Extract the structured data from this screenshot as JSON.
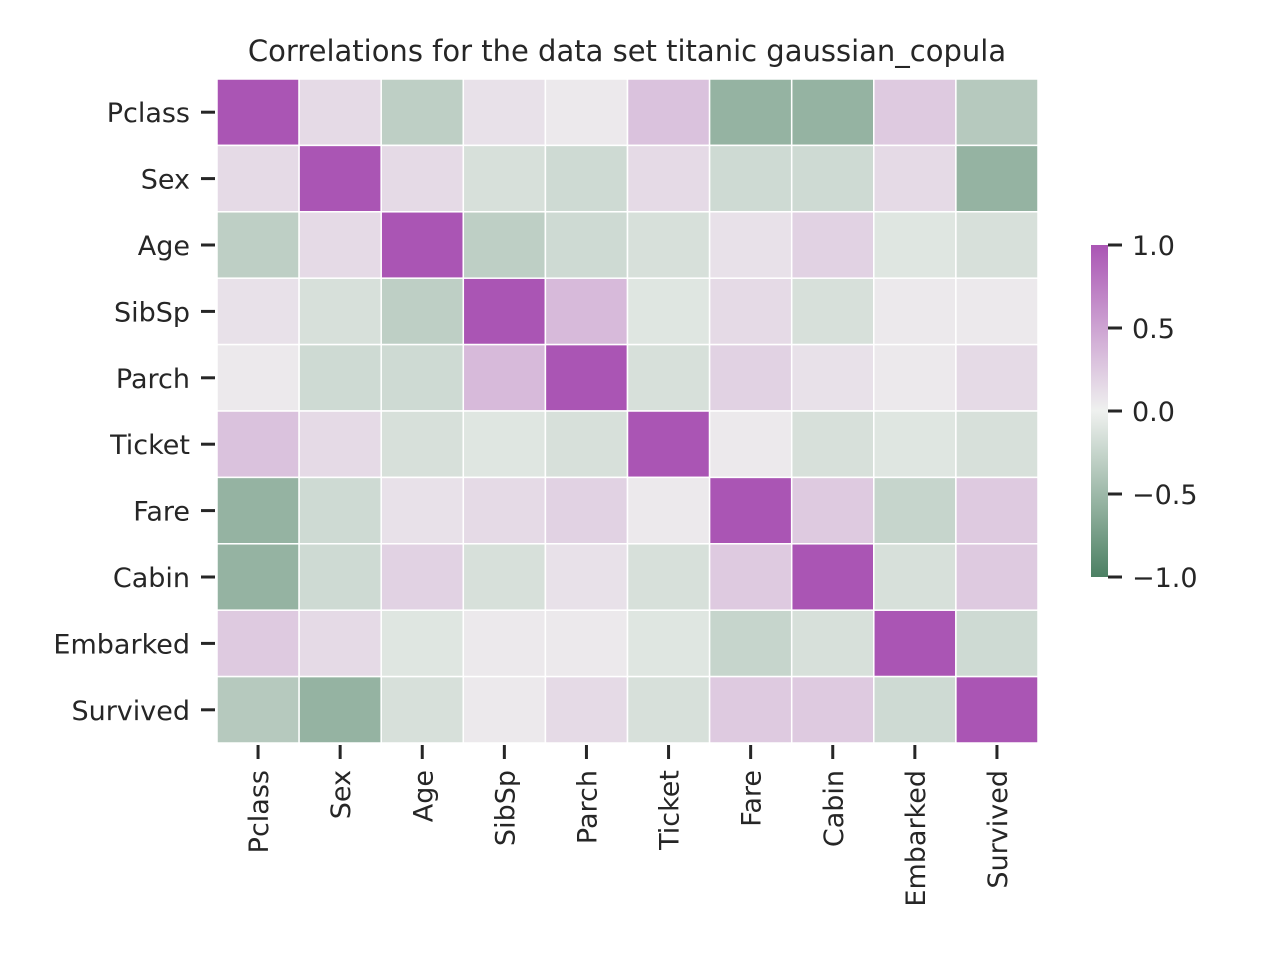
{
  "chart_data": {
    "type": "heatmap",
    "title": "Correlations for the data set titanic gaussian_copula",
    "xlabel": "",
    "ylabel": "",
    "row_labels": [
      "Pclass",
      "Sex",
      "Age",
      "SibSp",
      "Parch",
      "Ticket",
      "Fare",
      "Cabin",
      "Embarked",
      "Survived"
    ],
    "col_labels": [
      "Pclass",
      "Sex",
      "Age",
      "SibSp",
      "Parch",
      "Ticket",
      "Fare",
      "Cabin",
      "Embarked",
      "Survived"
    ],
    "values": [
      [
        1.0,
        0.15,
        -0.3,
        0.1,
        0.05,
        0.3,
        -0.55,
        -0.55,
        0.25,
        -0.35
      ],
      [
        0.15,
        1.0,
        0.15,
        -0.15,
        -0.2,
        0.15,
        -0.2,
        -0.2,
        0.15,
        -0.55
      ],
      [
        -0.3,
        0.15,
        1.0,
        -0.3,
        -0.2,
        -0.15,
        0.1,
        0.2,
        -0.1,
        -0.15
      ],
      [
        0.1,
        -0.15,
        -0.3,
        1.0,
        0.35,
        -0.1,
        0.15,
        -0.15,
        0.05,
        0.05
      ],
      [
        0.05,
        -0.2,
        -0.2,
        0.35,
        1.0,
        -0.15,
        0.2,
        0.1,
        0.05,
        0.15
      ],
      [
        0.3,
        0.15,
        -0.15,
        -0.1,
        -0.15,
        1.0,
        0.05,
        -0.15,
        -0.1,
        -0.15
      ],
      [
        -0.55,
        -0.2,
        0.1,
        0.15,
        0.2,
        0.05,
        1.0,
        0.25,
        -0.25,
        0.25
      ],
      [
        -0.55,
        -0.2,
        0.2,
        -0.15,
        0.1,
        -0.15,
        0.25,
        1.0,
        -0.15,
        0.25
      ],
      [
        0.25,
        0.15,
        -0.1,
        0.05,
        0.05,
        -0.1,
        -0.25,
        -0.15,
        1.0,
        -0.2
      ],
      [
        -0.35,
        -0.55,
        -0.15,
        0.05,
        0.15,
        -0.15,
        0.25,
        0.25,
        -0.2,
        1.0
      ]
    ],
    "vmin": -1.0,
    "vmax": 1.0,
    "colorbar_ticks": [
      "1.0",
      "0.5",
      "0.0",
      "−0.5",
      "−1.0"
    ],
    "colorbar_tick_values": [
      1.0,
      0.5,
      0.0,
      -0.5,
      -1.0
    ],
    "colors": {
      "low": "#4c8063",
      "mid": "#eff1ef",
      "high": "#aa55b4",
      "grid_line": "#ffffff",
      "text": "#262626"
    }
  }
}
